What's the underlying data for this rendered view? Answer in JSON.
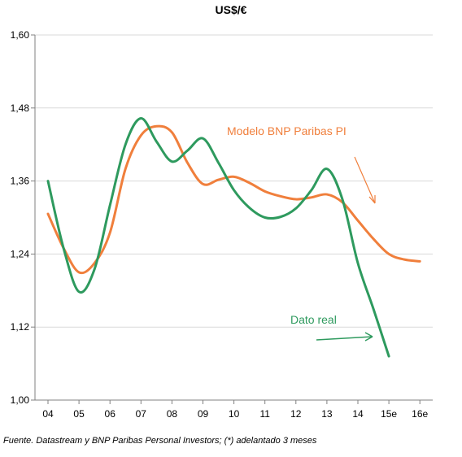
{
  "chart_data": {
    "type": "line",
    "title": "US$/€",
    "xlabel": "",
    "ylabel": "",
    "categories": [
      "04",
      "05",
      "06",
      "07",
      "08",
      "09",
      "10",
      "11",
      "12",
      "13",
      "14",
      "15e",
      "16e"
    ],
    "ylim": [
      1.0,
      1.6
    ],
    "y_ticks": [
      "1,00",
      "1,12",
      "1,24",
      "1,36",
      "1,48",
      "1,60"
    ],
    "grid": true,
    "series": [
      {
        "name": "Modelo BNP Paribas PI",
        "color": "#f07f3c",
        "points": [
          {
            "x": 0.0,
            "y": 1.306
          },
          {
            "x": 0.5,
            "y": 1.25
          },
          {
            "x": 1.0,
            "y": 1.21
          },
          {
            "x": 1.5,
            "y": 1.225
          },
          {
            "x": 2.0,
            "y": 1.275
          },
          {
            "x": 2.5,
            "y": 1.38
          },
          {
            "x": 3.0,
            "y": 1.435
          },
          {
            "x": 3.5,
            "y": 1.45
          },
          {
            "x": 4.0,
            "y": 1.44
          },
          {
            "x": 4.5,
            "y": 1.39
          },
          {
            "x": 5.0,
            "y": 1.355
          },
          {
            "x": 5.5,
            "y": 1.362
          },
          {
            "x": 6.0,
            "y": 1.367
          },
          {
            "x": 6.5,
            "y": 1.357
          },
          {
            "x": 7.0,
            "y": 1.343
          },
          {
            "x": 7.5,
            "y": 1.335
          },
          {
            "x": 8.0,
            "y": 1.33
          },
          {
            "x": 8.5,
            "y": 1.333
          },
          {
            "x": 9.0,
            "y": 1.338
          },
          {
            "x": 9.5,
            "y": 1.325
          },
          {
            "x": 10.0,
            "y": 1.295
          },
          {
            "x": 10.5,
            "y": 1.265
          },
          {
            "x": 11.0,
            "y": 1.24
          },
          {
            "x": 11.5,
            "y": 1.231
          },
          {
            "x": 12.0,
            "y": 1.228
          }
        ]
      },
      {
        "name": "Dato real",
        "color": "#2e9a5e",
        "points": [
          {
            "x": 0.0,
            "y": 1.36
          },
          {
            "x": 0.5,
            "y": 1.25
          },
          {
            "x": 1.0,
            "y": 1.178
          },
          {
            "x": 1.5,
            "y": 1.215
          },
          {
            "x": 2.0,
            "y": 1.32
          },
          {
            "x": 2.5,
            "y": 1.42
          },
          {
            "x": 3.0,
            "y": 1.463
          },
          {
            "x": 3.5,
            "y": 1.425
          },
          {
            "x": 4.0,
            "y": 1.392
          },
          {
            "x": 4.5,
            "y": 1.41
          },
          {
            "x": 5.0,
            "y": 1.43
          },
          {
            "x": 5.5,
            "y": 1.39
          },
          {
            "x": 6.0,
            "y": 1.345
          },
          {
            "x": 6.5,
            "y": 1.316
          },
          {
            "x": 7.0,
            "y": 1.3
          },
          {
            "x": 7.5,
            "y": 1.301
          },
          {
            "x": 8.0,
            "y": 1.315
          },
          {
            "x": 8.5,
            "y": 1.345
          },
          {
            "x": 9.0,
            "y": 1.38
          },
          {
            "x": 9.5,
            "y": 1.33
          },
          {
            "x": 10.0,
            "y": 1.225
          },
          {
            "x": 10.5,
            "y": 1.15
          },
          {
            "x": 11.0,
            "y": 1.072
          }
        ]
      }
    ],
    "annotations": [
      {
        "text": "Modelo BNP Paribas PI",
        "color": "#f07f3c"
      },
      {
        "text": "Dato real",
        "color": "#2e9a5e"
      }
    ],
    "source": "Fuente. Datastream y BNP Paribas Personal Investors; (*) adelantado 3 meses"
  }
}
